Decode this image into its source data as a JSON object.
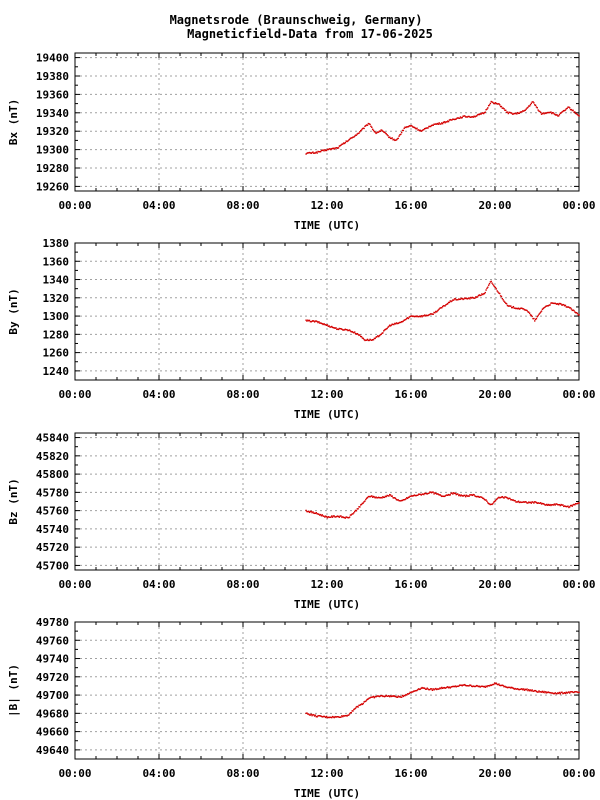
{
  "title_line1": "Magnetsrode (Braunschweig, Germany)",
  "title_line2": "Magneticfield-Data from 17-06-2025",
  "colors": {
    "series": "#d40000",
    "grid": "#a0a0a0",
    "frame": "#000000"
  },
  "chart_data": [
    {
      "type": "scatter",
      "ylabel": "Bx (nT)",
      "xlabel": "TIME (UTC)",
      "x_ticks": [
        "00:00",
        "04:00",
        "08:00",
        "12:00",
        "16:00",
        "20:00",
        "00:00"
      ],
      "xlim_hours": [
        0,
        24
      ],
      "ylim": [
        19255,
        19405
      ],
      "y_ticks": [
        19260,
        19280,
        19300,
        19320,
        19340,
        19360,
        19380,
        19400
      ],
      "grid": true,
      "series": [
        {
          "color": "#d40000",
          "x": [
            11.0,
            11.5,
            12.0,
            12.5,
            13.0,
            13.5,
            14.0,
            14.3,
            14.6,
            15.0,
            15.3,
            15.7,
            16.0,
            16.5,
            17.0,
            17.5,
            18.0,
            18.5,
            19.0,
            19.5,
            19.8,
            20.2,
            20.6,
            21.0,
            21.4,
            21.8,
            22.2,
            22.6,
            23.0,
            23.5,
            24.0
          ],
          "y": [
            19296,
            19297,
            19300,
            19302,
            19310,
            19318,
            19329,
            19318,
            19321,
            19313,
            19310,
            19324,
            19326,
            19320,
            19327,
            19329,
            19333,
            19336,
            19336,
            19340,
            19352,
            19349,
            19340,
            19339,
            19342,
            19352,
            19339,
            19341,
            19337,
            19346,
            19337
          ]
        }
      ]
    },
    {
      "type": "scatter",
      "ylabel": "By (nT)",
      "xlabel": "TIME (UTC)",
      "x_ticks": [
        "00:00",
        "04:00",
        "08:00",
        "12:00",
        "16:00",
        "20:00",
        "00:00"
      ],
      "xlim_hours": [
        0,
        24
      ],
      "ylim": [
        1230,
        1380
      ],
      "y_ticks": [
        1240,
        1260,
        1280,
        1300,
        1320,
        1340,
        1360,
        1380
      ],
      "grid": true,
      "series": [
        {
          "color": "#d40000",
          "x": [
            11.0,
            11.5,
            12.0,
            12.5,
            13.0,
            13.5,
            13.8,
            14.2,
            14.6,
            15.0,
            15.5,
            16.0,
            16.5,
            17.0,
            17.5,
            18.0,
            18.5,
            19.0,
            19.5,
            19.8,
            20.2,
            20.6,
            21.0,
            21.5,
            21.9,
            22.3,
            22.7,
            23.1,
            23.5,
            24.0
          ],
          "y": [
            1295,
            1294,
            1290,
            1286,
            1285,
            1280,
            1274,
            1274,
            1281,
            1290,
            1293,
            1300,
            1300,
            1302,
            1310,
            1318,
            1319,
            1320,
            1325,
            1338,
            1325,
            1311,
            1309,
            1307,
            1295,
            1309,
            1314,
            1313,
            1310,
            1301
          ]
        }
      ]
    },
    {
      "type": "scatter",
      "ylabel": "Bz (nT)",
      "xlabel": "TIME (UTC)",
      "x_ticks": [
        "00:00",
        "04:00",
        "08:00",
        "12:00",
        "16:00",
        "20:00",
        "00:00"
      ],
      "xlim_hours": [
        0,
        24
      ],
      "ylim": [
        45695,
        45845
      ],
      "y_ticks": [
        45700,
        45720,
        45740,
        45760,
        45780,
        45800,
        45820,
        45840
      ],
      "grid": true,
      "series": [
        {
          "color": "#d40000",
          "x": [
            11.0,
            11.5,
            12.0,
            12.5,
            13.0,
            13.5,
            14.0,
            14.5,
            15.0,
            15.5,
            16.0,
            16.5,
            17.0,
            17.5,
            18.0,
            18.5,
            19.0,
            19.5,
            19.8,
            20.2,
            20.6,
            21.0,
            21.5,
            22.0,
            22.5,
            23.0,
            23.5,
            24.0
          ],
          "y": [
            45760,
            45757,
            45753,
            45754,
            45752,
            45763,
            45776,
            45774,
            45777,
            45770,
            45776,
            45778,
            45780,
            45776,
            45779,
            45776,
            45777,
            45773,
            45766,
            45775,
            45774,
            45770,
            45769,
            45769,
            45766,
            45767,
            45764,
            45769
          ]
        }
      ]
    },
    {
      "type": "scatter",
      "ylabel": "|B| (nT)",
      "xlabel": "TIME (UTC)",
      "x_ticks": [
        "00:00",
        "04:00",
        "08:00",
        "12:00",
        "16:00",
        "20:00",
        "00:00"
      ],
      "xlim_hours": [
        0,
        24
      ],
      "ylim": [
        49630,
        49780
      ],
      "y_ticks": [
        49640,
        49660,
        49680,
        49700,
        49720,
        49740,
        49760,
        49780
      ],
      "grid": true,
      "series": [
        {
          "color": "#d40000",
          "x": [
            11.0,
            11.5,
            12.0,
            12.5,
            13.0,
            13.3,
            13.7,
            14.0,
            14.5,
            15.0,
            15.5,
            16.0,
            16.5,
            17.0,
            17.5,
            18.0,
            18.5,
            19.0,
            19.5,
            20.0,
            20.5,
            21.0,
            21.5,
            22.0,
            22.5,
            23.0,
            23.5,
            24.0
          ],
          "y": [
            49680,
            49677,
            49676,
            49676,
            49678,
            49685,
            49691,
            49697,
            49699,
            49699,
            49698,
            49703,
            49708,
            49706,
            49708,
            49709,
            49711,
            49710,
            49709,
            49713,
            49709,
            49707,
            49706,
            49704,
            49703,
            49702,
            49703,
            49703
          ]
        }
      ]
    }
  ]
}
